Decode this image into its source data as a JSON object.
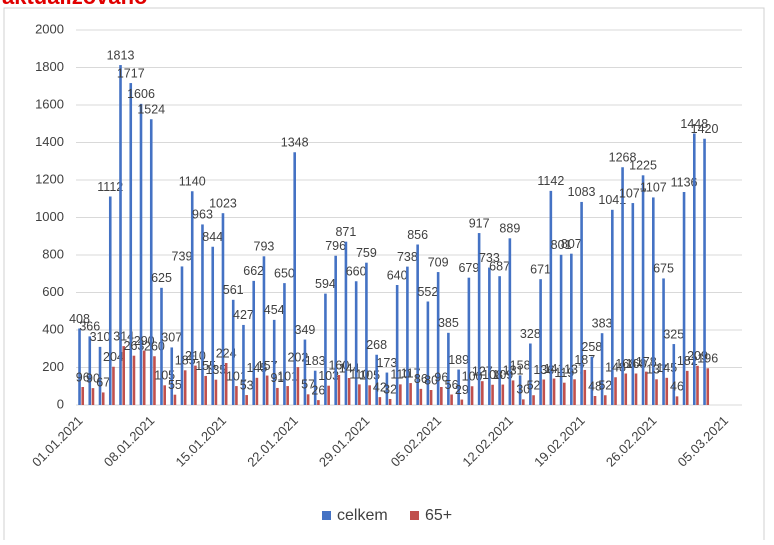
{
  "chart_data": {
    "type": "bar",
    "title": "aktualizováno",
    "categories": [
      "01.01.2021",
      null,
      null,
      null,
      null,
      null,
      null,
      "08.01.2021",
      null,
      null,
      null,
      null,
      null,
      null,
      "15.01.2021",
      null,
      null,
      null,
      null,
      null,
      null,
      "22.01.2021",
      null,
      null,
      null,
      null,
      null,
      null,
      "29.01.2021",
      null,
      null,
      null,
      null,
      null,
      null,
      "05.02.2021",
      null,
      null,
      null,
      null,
      null,
      null,
      "12.02.2021",
      null,
      null,
      null,
      null,
      null,
      null,
      "19.02.2021",
      null,
      null,
      null,
      null,
      null,
      null,
      "26.02.2021",
      null,
      null,
      null,
      null,
      null,
      null,
      "05.03.2021",
      null
    ],
    "series": [
      {
        "name": "celkem",
        "color": "#4472c4",
        "values": [
          408,
          366,
          310,
          1112,
          1813,
          1717,
          1606,
          1524,
          625,
          307,
          739,
          1140,
          963,
          844,
          1023,
          561,
          427,
          662,
          793,
          454,
          650,
          1348,
          349,
          183,
          594,
          796,
          871,
          660,
          759,
          268,
          173,
          640,
          738,
          856,
          552,
          709,
          385,
          189,
          679,
          917,
          733,
          687,
          889,
          158,
          328,
          671,
          1142,
          801,
          807,
          1083,
          258,
          383,
          1041,
          1268,
          1077,
          1225,
          1107,
          675,
          325,
          1136,
          1448,
          1420,
          null,
          null,
          null
        ]
      },
      {
        "name": "65+",
        "color": "#c0504d",
        "values": [
          96,
          90,
          67,
          204,
          314,
          263,
          290,
          260,
          105,
          55,
          185,
          210,
          155,
          135,
          224,
          101,
          53,
          145,
          157,
          91,
          101,
          202,
          57,
          26,
          103,
          160,
          144,
          110,
          105,
          42,
          32,
          110,
          117,
          86,
          80,
          96,
          56,
          29,
          100,
          127,
          108,
          109,
          131,
          30,
          52,
          136,
          141,
          119,
          137,
          187,
          48,
          52,
          148,
          168,
          168,
          178,
          137,
          145,
          46,
          182,
          209,
          196,
          null,
          null,
          null
        ]
      }
    ],
    "ylim": [
      0,
      2000
    ],
    "yticks": [
      0,
      200,
      400,
      600,
      800,
      1000,
      1200,
      1400,
      1600,
      1800,
      2000
    ],
    "grid": true,
    "legend": "bottom"
  }
}
